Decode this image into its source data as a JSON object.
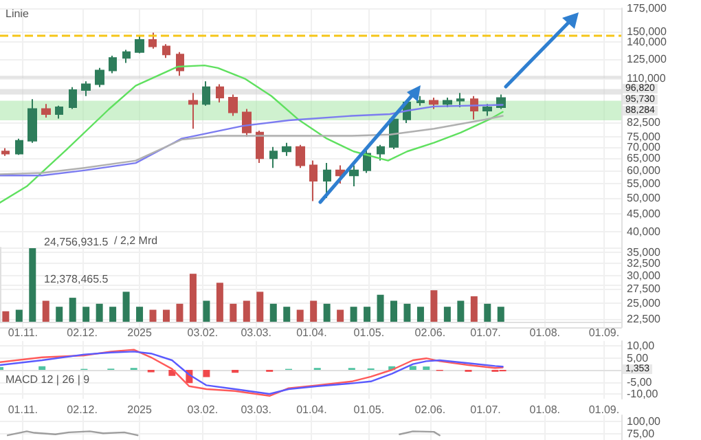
{
  "chart_data": [
    {
      "type": "candlestick",
      "x": [
        "2024-10-23",
        "2024-10-30",
        "2024-11-06",
        "2024-11-13",
        "2024-11-20",
        "2024-11-27",
        "2024-12-04",
        "2024-12-11",
        "2024-12-18",
        "2024-12-25",
        "2025-01-01",
        "2025-01-08",
        "2025-01-15",
        "2025-01-22",
        "2025-01-29",
        "2025-02-05",
        "2025-02-12",
        "2025-02-19",
        "2025-02-26",
        "2025-03-05",
        "2025-03-12",
        "2025-03-19",
        "2025-03-26",
        "2025-04-02",
        "2025-04-09",
        "2025-04-16",
        "2025-04-23",
        "2025-04-30",
        "2025-05-07",
        "2025-05-14",
        "2025-05-21",
        "2025-05-28",
        "2025-06-04",
        "2025-06-11",
        "2025-06-18",
        "2025-06-25",
        "2025-07-02",
        "2025-07-09"
      ],
      "ohlc": [
        [
          68000,
          69500,
          66000,
          67000
        ],
        [
          67000,
          74000,
          66500,
          73000
        ],
        [
          73000,
          96000,
          72000,
          90000
        ],
        [
          90000,
          93000,
          85000,
          87000
        ],
        [
          87000,
          92000,
          84500,
          91000
        ],
        [
          91000,
          104000,
          90000,
          102000
        ],
        [
          102000,
          108000,
          98000,
          106000
        ],
        [
          106000,
          118000,
          104000,
          116000
        ],
        [
          116000,
          128000,
          114000,
          126000
        ],
        [
          126000,
          133000,
          122000,
          131000
        ],
        [
          131000,
          146000,
          130000,
          142000
        ],
        [
          142000,
          149000,
          134000,
          136000
        ],
        [
          136000,
          138000,
          126000,
          129000
        ],
        [
          129000,
          131000,
          112000,
          116000
        ],
        [
          95000,
          100000,
          79000,
          93000
        ],
        [
          93000,
          108000,
          92000,
          104000
        ],
        [
          104000,
          106000,
          94000,
          97000
        ],
        [
          97000,
          99000,
          86000,
          88000
        ],
        [
          88000,
          90000,
          75000,
          77000
        ],
        [
          77000,
          78000,
          63000,
          65000
        ],
        [
          65000,
          70000,
          61000,
          68000
        ],
        [
          68000,
          72000,
          66000,
          70000
        ],
        [
          70000,
          71000,
          61000,
          62000
        ],
        [
          62000,
          64000,
          49000,
          56000
        ],
        [
          56000,
          63000,
          50000,
          60000
        ],
        [
          60000,
          62000,
          55000,
          58000
        ],
        [
          58000,
          62000,
          54000,
          60000
        ],
        [
          60000,
          69000,
          59000,
          67000
        ],
        [
          67000,
          71000,
          64000,
          70000
        ],
        [
          70000,
          86000,
          69000,
          84000
        ],
        [
          84000,
          95000,
          82000,
          94000
        ],
        [
          94000,
          98000,
          92000,
          95000
        ],
        [
          95000,
          97000,
          90000,
          93000
        ],
        [
          93000,
          97000,
          91000,
          95000
        ],
        [
          95000,
          100000,
          91000,
          96000
        ],
        [
          96000,
          98000,
          84000,
          89000
        ],
        [
          89000,
          93000,
          86000,
          91000
        ],
        [
          91000,
          99000,
          90000,
          96820
        ]
      ],
      "colors": [
        "#c0504d",
        "#2e7d5b",
        "#2e7d5b",
        "#c0504d",
        "#2e7d5b",
        "#2e7d5b",
        "#2e7d5b",
        "#2e7d5b",
        "#2e7d5b",
        "#2e7d5b",
        "#2e7d5b",
        "#c0504d",
        "#c0504d",
        "#c0504d",
        "#c0504d",
        "#2e7d5b",
        "#c0504d",
        "#c0504d",
        "#c0504d",
        "#c0504d",
        "#2e7d5b",
        "#2e7d5b",
        "#c0504d",
        "#c0504d",
        "#2e7d5b",
        "#c0504d",
        "#2e7d5b",
        "#2e7d5b",
        "#2e7d5b",
        "#2e7d5b",
        "#2e7d5b",
        "#2e7d5b",
        "#c0504d",
        "#2e7d5b",
        "#2e7d5b",
        "#c0504d",
        "#2e7d5b",
        "#2e7d5b"
      ],
      "series": [
        {
          "type": "line",
          "color": "#5fe05f",
          "x": [
            "2024-10-20",
            "2024-11-03",
            "2024-11-24",
            "2024-12-16",
            "2024-12-30",
            "2025-01-21",
            "2025-02-04",
            "2025-02-11",
            "2025-02-25",
            "2025-03-11",
            "2025-03-25",
            "2025-04-09",
            "2025-04-23",
            "2025-05-11",
            "2025-05-21",
            "2025-06-04",
            "2025-06-18",
            "2025-07-03",
            "2025-07-10"
          ],
          "values": [
            48500,
            54000,
            69000,
            89900,
            105000,
            119000,
            120000,
            118000,
            110000,
            98000,
            84000,
            74000,
            68000,
            64000,
            68000,
            72000,
            77000,
            84000,
            88284
          ]
        },
        {
          "type": "line",
          "color": "#7b7bf0",
          "x": [
            "2024-10-20",
            "2024-11-11",
            "2024-12-03",
            "2024-12-30",
            "2025-01-23",
            "2025-02-24",
            "2025-03-20",
            "2025-04-22",
            "2025-05-12",
            "2025-05-21",
            "2025-06-04",
            "2025-07-10"
          ],
          "values": [
            58000,
            58000,
            60000,
            63000,
            74000,
            80500,
            83500,
            86000,
            87000,
            89000,
            91500,
            92500
          ]
        },
        {
          "type": "line",
          "color": "#b0b0b0",
          "x": [
            "2024-10-20",
            "2024-11-11",
            "2024-12-03",
            "2024-12-30",
            "2025-01-23",
            "2025-02-11",
            "2025-04-22",
            "2025-05-12",
            "2025-06-04",
            "2025-07-01",
            "2025-07-10"
          ],
          "values": [
            58500,
            59000,
            61000,
            64000,
            73500,
            75400,
            75400,
            76000,
            79000,
            84000,
            86000
          ]
        }
      ],
      "xlim": [
        "2024-10-20",
        "2025-09-10"
      ],
      "xticks": [
        {
          "value": "2024-11-01",
          "label": null
        },
        {
          "value": "2024-12-02",
          "label": null
        },
        {
          "value": "2025-01-01",
          "label": null
        },
        {
          "value": "2025-02-03",
          "label": null
        },
        {
          "value": "2025-03-03",
          "label": null
        },
        {
          "value": "2025-04-01",
          "label": null
        },
        {
          "value": "2025-05-01",
          "label": null
        },
        {
          "value": "2025-06-02",
          "label": null
        },
        {
          "value": "2025-07-01",
          "label": null
        },
        {
          "value": "2025-08-01",
          "label": null
        },
        {
          "value": "2025-09-01",
          "label": null
        }
      ],
      "ylim": [
        21300,
        175000
      ],
      "yticks": [
        {
          "value": 175000,
          "label": "175,000"
        },
        {
          "value": 150000,
          "label": "150,000"
        },
        {
          "value": 140000,
          "label": "140,000"
        },
        {
          "value": 125000,
          "label": "125,000"
        },
        {
          "value": 110000,
          "label": "110,000"
        },
        {
          "value": 82500,
          "label": "82,500"
        },
        {
          "value": 75000,
          "label": "75,000"
        },
        {
          "value": 70000,
          "label": "70,000"
        },
        {
          "value": 65000,
          "label": "65,000"
        },
        {
          "value": 60000,
          "label": "60,000"
        },
        {
          "value": 55000,
          "label": "55,000"
        },
        {
          "value": 50000,
          "label": "50,000"
        },
        {
          "value": 45000,
          "label": "45,000"
        },
        {
          "value": 40000,
          "label": "40,000"
        },
        {
          "value": 35000,
          "label": "35,000"
        },
        {
          "value": 32500,
          "label": "32,500"
        },
        {
          "value": 30000,
          "label": "30,000"
        },
        {
          "value": 27500,
          "label": "27,500"
        },
        {
          "value": 25000,
          "label": "25,000"
        },
        {
          "value": 22500,
          "label": "22,500"
        }
      ],
      "log": true,
      "grid": true,
      "tick_labels": "y",
      "marker": "none",
      "ref_lines": [
        {
          "axis": "y",
          "value": 146000,
          "color": "#f5c518",
          "line_style": "dashed"
        }
      ],
      "bands": [
        {
          "axis": "y",
          "from": 110000,
          "to": 112000,
          "color": "#d0d0d0"
        },
        {
          "axis": "y",
          "from": 99000,
          "to": 102700,
          "color": "#d0d0d0"
        },
        {
          "axis": "y",
          "from": 83500,
          "to": 95000,
          "color": "#a8e6a8"
        }
      ],
      "annotations": [
        "Linie",
        "96,820",
        "95,730",
        "88,284"
      ]
    },
    {
      "type": "bar",
      "x": [
        "2024-10-23",
        "2024-10-30",
        "2024-11-06",
        "2024-11-13",
        "2024-11-20",
        "2024-11-27",
        "2024-12-04",
        "2024-12-11",
        "2024-12-18",
        "2024-12-25",
        "2025-01-01",
        "2025-01-08",
        "2025-01-15",
        "2025-01-22",
        "2025-01-29",
        "2025-02-05",
        "2025-02-12",
        "2025-02-19",
        "2025-02-26",
        "2025-03-05",
        "2025-03-12",
        "2025-03-19",
        "2025-03-26",
        "2025-04-02",
        "2025-04-09",
        "2025-04-16",
        "2025-04-23",
        "2025-04-30",
        "2025-05-07",
        "2025-05-14",
        "2025-05-21",
        "2025-05-28",
        "2025-06-04",
        "2025-06-11",
        "2025-06-18",
        "2025-06-25",
        "2025-07-02",
        "2025-07-09"
      ],
      "values": [
        3500000,
        4000000,
        24500000,
        7000000,
        5000000,
        8000000,
        5000000,
        6000000,
        5000000,
        10000000,
        5000000,
        4000000,
        4000000,
        6000000,
        16000000,
        7000000,
        13000000,
        6000000,
        7000000,
        10000000,
        6000000,
        5000000,
        4000000,
        7000000,
        6000000,
        4000000,
        5000000,
        5000000,
        9000000,
        7000000,
        6000000,
        5000000,
        10500000,
        5000000,
        7000000,
        8500000,
        6000000,
        5000000
      ],
      "colors": [
        "#c0504d",
        "#2e7d5b",
        "#2e7d5b",
        "#c0504d",
        "#2e7d5b",
        "#2e7d5b",
        "#2e7d5b",
        "#2e7d5b",
        "#2e7d5b",
        "#2e7d5b",
        "#2e7d5b",
        "#c0504d",
        "#c0504d",
        "#c0504d",
        "#c0504d",
        "#2e7d5b",
        "#c0504d",
        "#c0504d",
        "#c0504d",
        "#c0504d",
        "#2e7d5b",
        "#2e7d5b",
        "#c0504d",
        "#c0504d",
        "#2e7d5b",
        "#c0504d",
        "#2e7d5b",
        "#2e7d5b",
        "#2e7d5b",
        "#2e7d5b",
        "#2e7d5b",
        "#2e7d5b",
        "#c0504d",
        "#2e7d5b",
        "#2e7d5b",
        "#c0504d",
        "#2e7d5b",
        "#2e7d5b"
      ],
      "xlim": [
        "2024-10-20",
        "2025-09-10"
      ],
      "xticks": [
        {
          "value": "2024-11-01",
          "label": "01.11."
        },
        {
          "value": "2024-12-02",
          "label": "02.12."
        },
        {
          "value": "2025-01-01",
          "label": "2025"
        },
        {
          "value": "2025-02-03",
          "label": "03.02."
        },
        {
          "value": "2025-03-03",
          "label": "03.03."
        },
        {
          "value": "2025-04-01",
          "label": "01.04."
        },
        {
          "value": "2025-05-01",
          "label": "01.05."
        },
        {
          "value": "2025-06-02",
          "label": "02.06."
        },
        {
          "value": "2025-07-01",
          "label": "01.07."
        },
        {
          "value": "2025-08-01",
          "label": "01.08."
        },
        {
          "value": "2025-09-01",
          "label": "01.09."
        }
      ],
      "ylim": [
        0,
        24756931.5
      ],
      "yticks": [
        {
          "value": 12378465.5,
          "label": "12,378,465.5"
        },
        {
          "value": 24756931.5,
          "label": "24,756,931.5"
        }
      ],
      "grid": true,
      "annotations": [
        "/ 2,2 Mrd"
      ]
    },
    {
      "type": "line",
      "marker": "none",
      "series": [
        {
          "color": "#ff5a5a",
          "x": [
            "2024-10-20",
            "2024-11-11",
            "2024-12-03",
            "2024-12-17",
            "2024-12-29",
            "2025-01-07",
            "2025-01-18",
            "2025-01-27",
            "2025-02-05",
            "2025-02-20",
            "2025-03-10",
            "2025-03-20",
            "2025-04-04",
            "2025-04-22",
            "2025-05-02",
            "2025-05-13",
            "2025-05-24",
            "2025-05-31",
            "2025-06-07",
            "2025-06-22",
            "2025-07-06",
            "2025-07-10"
          ],
          "values": [
            3.2,
            5.2,
            6,
            7.6,
            8.4,
            5.2,
            0.4,
            -6.8,
            -8,
            -8.8,
            -10.8,
            -7.6,
            -6.4,
            -4.8,
            -2.8,
            0,
            4,
            4.8,
            3.6,
            2,
            0.8,
            1
          ]
        },
        {
          "color": "#5a5aff",
          "x": [
            "2024-10-20",
            "2024-11-11",
            "2024-12-03",
            "2024-12-17",
            "2024-12-29",
            "2025-01-07",
            "2025-01-18",
            "2025-01-27",
            "2025-02-05",
            "2025-02-20",
            "2025-03-10",
            "2025-03-20",
            "2025-04-04",
            "2025-04-22",
            "2025-05-02",
            "2025-05-13",
            "2025-05-24",
            "2025-05-31",
            "2025-06-07",
            "2025-06-22",
            "2025-07-06",
            "2025-07-10"
          ],
          "values": [
            2,
            4,
            6.4,
            7.2,
            7.6,
            6.8,
            4,
            -2,
            -6.4,
            -8,
            -10,
            -8,
            -6.8,
            -5.6,
            -4.8,
            -1.6,
            2.4,
            3.6,
            4,
            2.8,
            1.6,
            1.353
          ]
        },
        {
          "type": "bar",
          "x": [
            "2024-10-20",
            "2024-11-11",
            "2024-12-03",
            "2024-12-17",
            "2024-12-29",
            "2025-01-07",
            "2025-01-18",
            "2025-01-27",
            "2025-02-05",
            "2025-02-20",
            "2025-03-10",
            "2025-03-20",
            "2025-04-04",
            "2025-04-22",
            "2025-05-02",
            "2025-05-13",
            "2025-05-24",
            "2025-05-31",
            "2025-06-07",
            "2025-06-22",
            "2025-07-06",
            "2025-07-10"
          ],
          "values": [
            1.2,
            1.5,
            0.4,
            0.5,
            0.8,
            -1,
            -2.5,
            -5.5,
            -3,
            -1.2,
            -0.8,
            0.4,
            0.8,
            0.8,
            0.6,
            1.5,
            1.6,
            1.4,
            -0.4,
            -0.8,
            -0.8,
            -0.6
          ],
          "colors": [
            "#4fc3a1",
            "#4fc3a1",
            "#4fc3a1",
            "#4fc3a1",
            "#4fc3a1",
            "#f0484b",
            "#f0484b",
            "#f0484b",
            "#f0484b",
            "#f0484b",
            "#f0484b",
            "#4fc3a1",
            "#4fc3a1",
            "#4fc3a1",
            "#4fc3a1",
            "#4fc3a1",
            "#4fc3a1",
            "#4fc3a1",
            "#f0484b",
            "#f0484b",
            "#f0484b",
            "#f0484b"
          ]
        }
      ],
      "xlim": [
        "2024-10-20",
        "2025-09-10"
      ],
      "xticks": [
        {
          "value": "2024-11-01",
          "label": "01.11."
        },
        {
          "value": "2024-12-02",
          "label": "02.12."
        },
        {
          "value": "2025-01-01",
          "label": "2025"
        },
        {
          "value": "2025-02-03",
          "label": "03.02."
        },
        {
          "value": "2025-03-03",
          "label": "03.03."
        },
        {
          "value": "2025-04-01",
          "label": "01.04."
        },
        {
          "value": "2025-05-01",
          "label": "01.05."
        },
        {
          "value": "2025-06-02",
          "label": "02.06."
        },
        {
          "value": "2025-07-01",
          "label": "01.07."
        },
        {
          "value": "2025-08-01",
          "label": "01.08."
        },
        {
          "value": "2025-09-01",
          "label": "01.09."
        }
      ],
      "ylim": [
        -12,
        12
      ],
      "yticks": [
        {
          "value": 10,
          "label": "10,00"
        },
        {
          "value": 5,
          "label": "5,00"
        },
        {
          "value": -5,
          "label": "-5,00"
        },
        {
          "value": -10,
          "label": "-10,00"
        }
      ],
      "grid": true,
      "annotations": [
        "MACD 12 | 26 | 9",
        "1,353"
      ]
    },
    {
      "type": "line",
      "marker": "none",
      "series": [
        {
          "color": "#9e9e9e",
          "x": [
            "2024-10-24",
            "2024-11-03",
            "2024-11-07",
            "2024-11-18",
            "2024-11-25",
            "2024-12-06",
            "2024-12-13",
            "2024-12-24",
            "2024-12-31",
            "2025-01-21",
            "2025-05-17",
            "2025-05-24",
            "2025-06-04",
            "2025-06-07"
          ],
          "values": [
            72,
            80,
            77,
            74,
            78,
            80,
            76,
            78,
            72,
            null,
            74,
            80,
            79,
            72
          ]
        }
      ],
      "xlim": [
        "2024-10-20",
        "2025-09-10"
      ],
      "xticks": [
        {
          "value": "2024-11-01",
          "label": null
        },
        {
          "value": "2024-12-02",
          "label": null
        },
        {
          "value": "2025-01-01",
          "label": null
        },
        {
          "value": "2025-02-03",
          "label": null
        },
        {
          "value": "2025-03-03",
          "label": null
        },
        {
          "value": "2025-04-01",
          "label": null
        },
        {
          "value": "2025-05-01",
          "label": null
        },
        {
          "value": "2025-06-02",
          "label": null
        },
        {
          "value": "2025-07-01",
          "label": null
        },
        {
          "value": "2025-08-01",
          "label": null
        },
        {
          "value": "2025-09-01",
          "label": null
        }
      ],
      "ylim": [
        62.5,
        112.5
      ],
      "yticks": [
        {
          "value": 100,
          "label": "100,00"
        },
        {
          "value": 75,
          "label": "75,00"
        }
      ],
      "grid": true,
      "tick_labels": "y"
    }
  ]
}
